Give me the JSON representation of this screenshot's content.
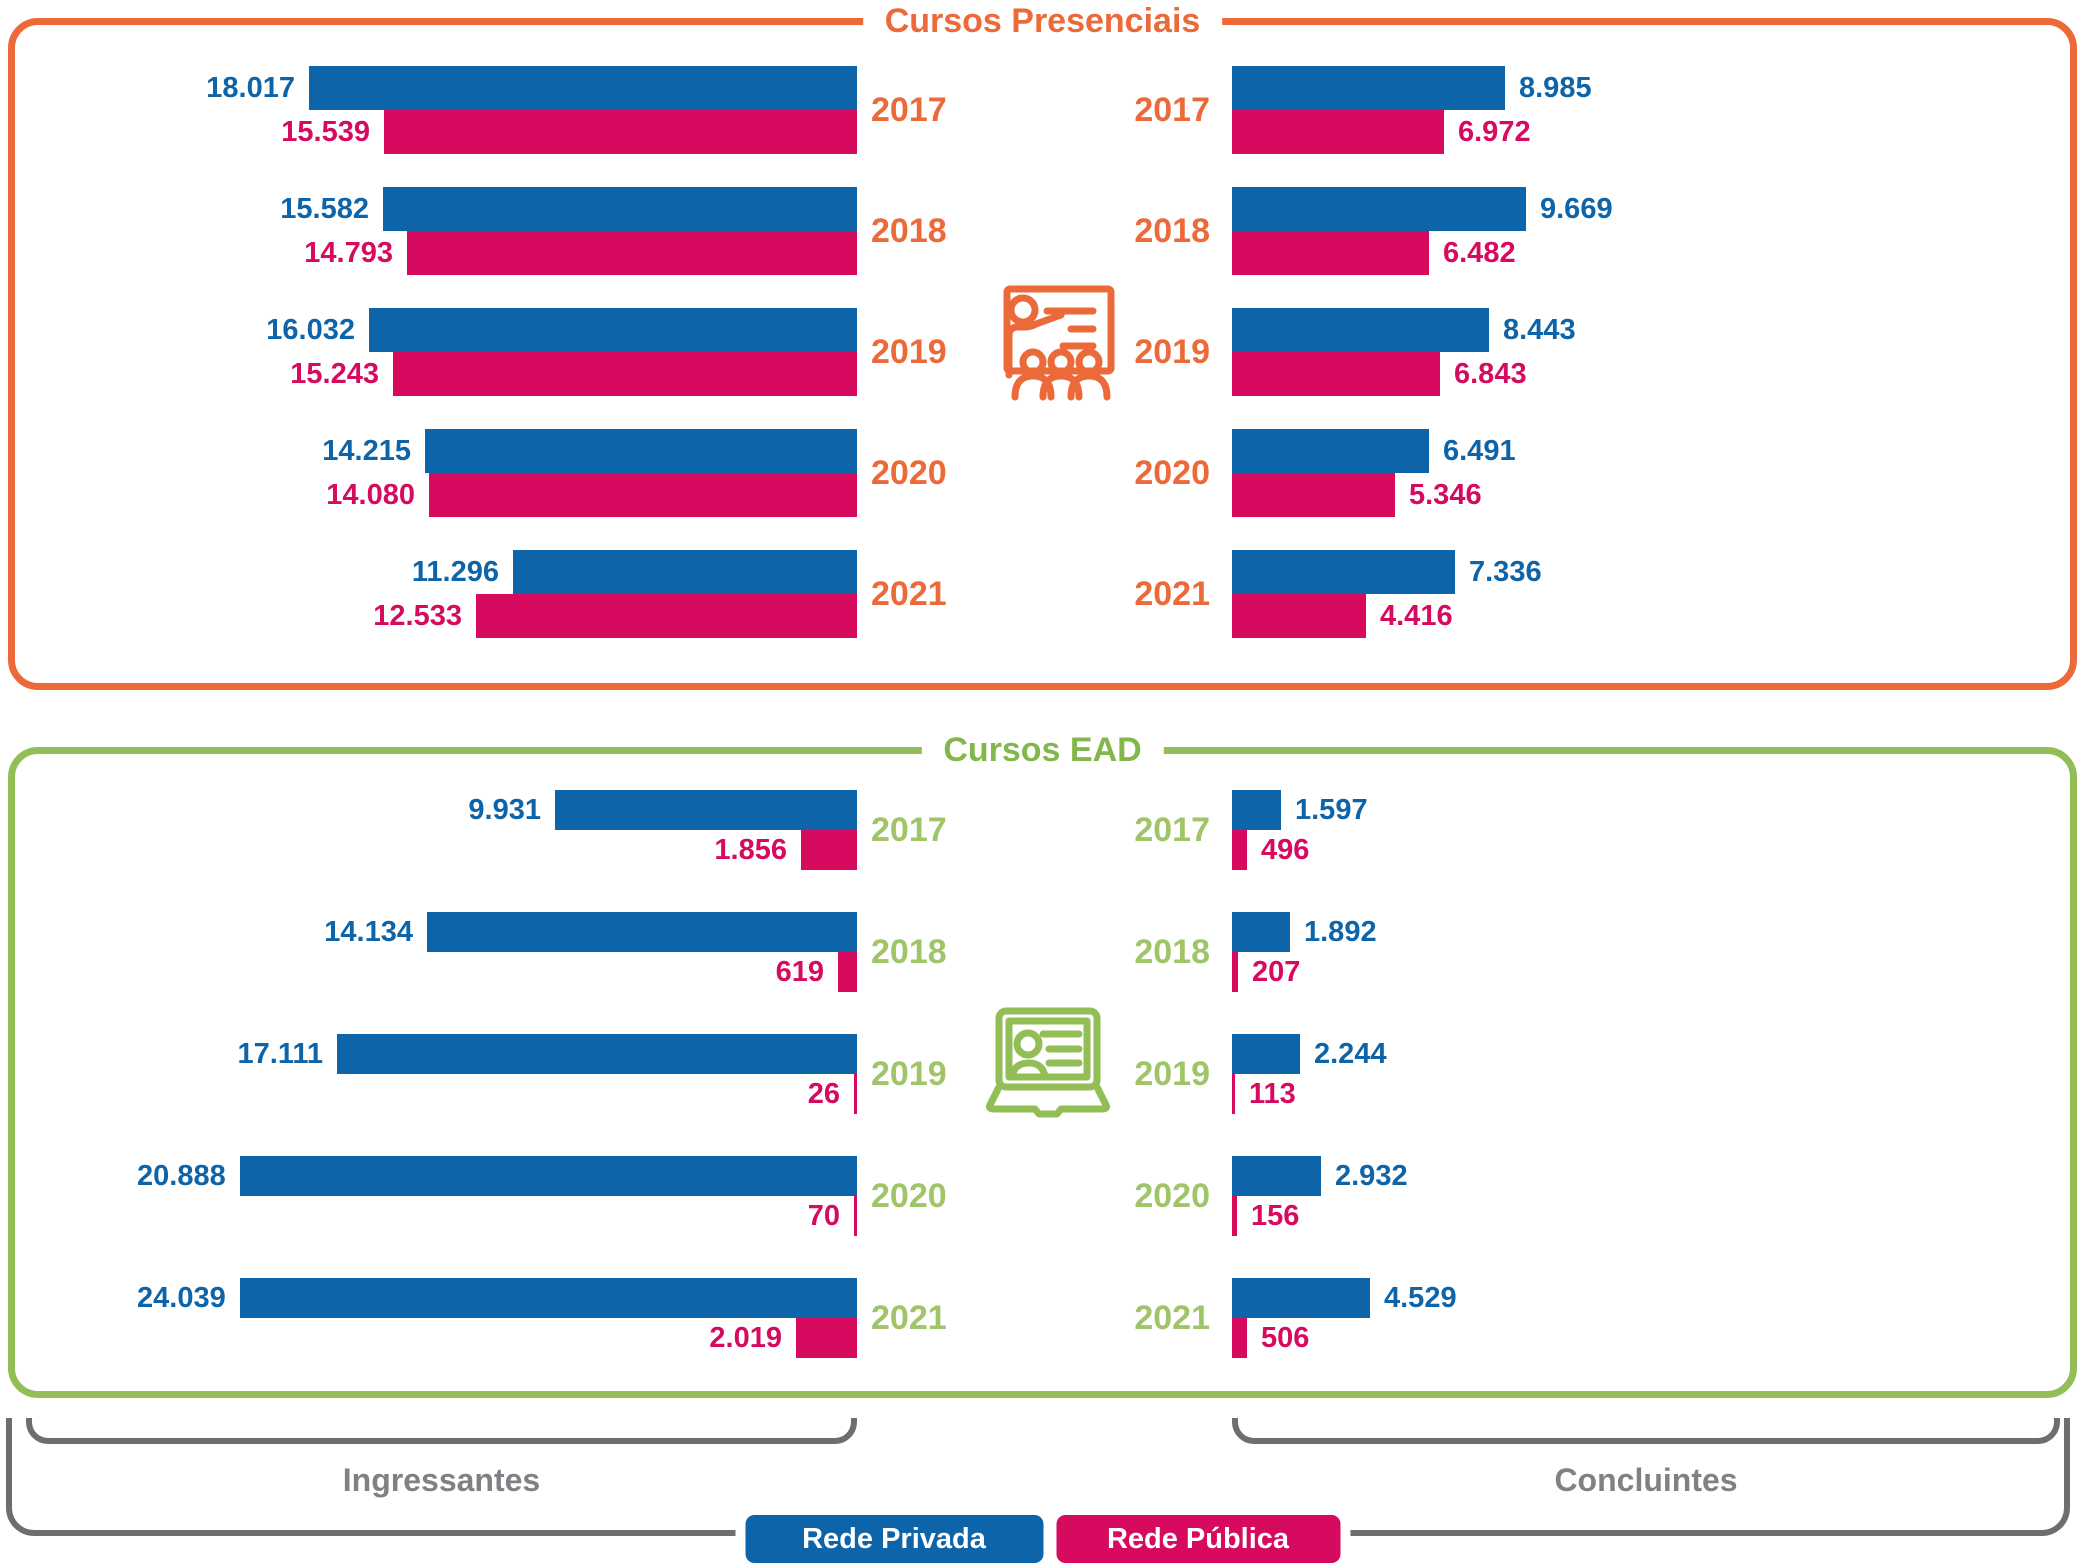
{
  "legend": {
    "items": [
      {
        "label": "Rede Privada",
        "color": "#0E64A8"
      },
      {
        "label": "Rede Pública",
        "color": "#D60A5E"
      }
    ]
  },
  "footer": {
    "left_label": "Ingressantes",
    "right_label": "Concluintes",
    "bracket_color": "#6D6E71",
    "label_color": "#808184"
  },
  "chart_data": [
    {
      "type": "bar",
      "title": "Cursos Presenciais",
      "accent_color": "#EC6A39",
      "title_color": "#EC6A39",
      "year_label_color": "#EC6A39",
      "icon": "presentation-icon",
      "years": [
        "2017",
        "2018",
        "2019",
        "2020",
        "2021"
      ],
      "groups": [
        {
          "name": "Ingressantes",
          "series": [
            {
              "name": "Rede Privada",
              "values": [
                18017,
                15582,
                16032,
                14215,
                11296
              ],
              "labels": [
                "18.017",
                "15.582",
                "16.032",
                "14.215",
                "11.296"
              ]
            },
            {
              "name": "Rede Pública",
              "values": [
                15539,
                14793,
                15243,
                14080,
                12533
              ],
              "labels": [
                "15.539",
                "14.793",
                "15.243",
                "14.080",
                "12.533"
              ]
            }
          ]
        },
        {
          "name": "Concluintes",
          "series": [
            {
              "name": "Rede Privada",
              "values": [
                8985,
                9669,
                8443,
                6491,
                7336
              ],
              "labels": [
                "8.985",
                "9.669",
                "8.443",
                "6.491",
                "7.336"
              ]
            },
            {
              "name": "Rede Pública",
              "values": [
                6972,
                6482,
                6843,
                5346,
                4416
              ],
              "labels": [
                "6.972",
                "6.482",
                "6.843",
                "5.346",
                "4.416"
              ]
            }
          ]
        }
      ]
    },
    {
      "type": "bar",
      "title": "Cursos EAD",
      "accent_color": "#92BE55",
      "title_color": "#84B74B",
      "year_label_color": "#A0C468",
      "icon": "laptop-icon",
      "years": [
        "2017",
        "2018",
        "2019",
        "2020",
        "2021"
      ],
      "groups": [
        {
          "name": "Ingressantes",
          "series": [
            {
              "name": "Rede Privada",
              "values": [
                9931,
                14134,
                17111,
                20888,
                24039
              ],
              "labels": [
                "9.931",
                "14.134",
                "17.111",
                "20.888",
                "24.039"
              ]
            },
            {
              "name": "Rede Pública",
              "values": [
                1856,
                619,
                26,
                70,
                2019
              ],
              "labels": [
                "1.856",
                "619",
                "26",
                "70",
                "2.019"
              ]
            }
          ]
        },
        {
          "name": "Concluintes",
          "series": [
            {
              "name": "Rede Privada",
              "values": [
                1597,
                1892,
                2244,
                2932,
                4529
              ],
              "labels": [
                "1.597",
                "1.892",
                "2.244",
                "2.932",
                "4.529"
              ]
            },
            {
              "name": "Rede Pública",
              "values": [
                496,
                207,
                113,
                156,
                506
              ],
              "labels": [
                "496",
                "207",
                "113",
                "156",
                "506"
              ]
            }
          ]
        }
      ]
    }
  ]
}
